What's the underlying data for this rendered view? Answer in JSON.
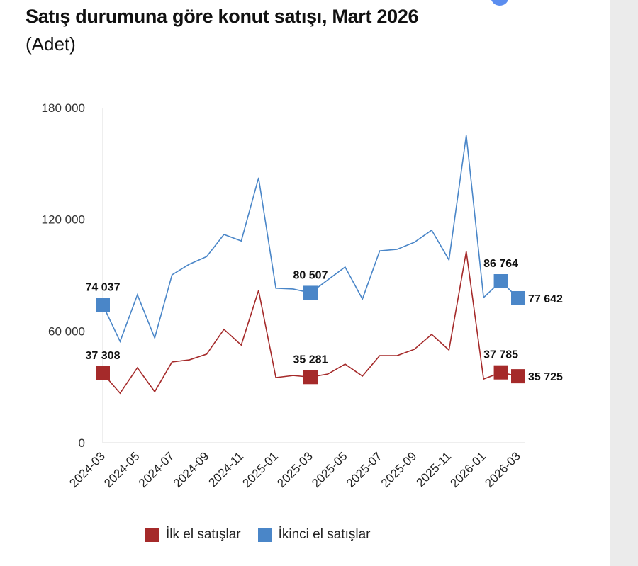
{
  "chart_data": {
    "type": "line",
    "title": "Satış durumuna göre konut satışı, Mart 2026",
    "subtitle": "(Adet)",
    "xlabel": "",
    "ylabel": "",
    "ylim": [
      0,
      180000
    ],
    "yticks": [
      0,
      60000,
      120000,
      180000
    ],
    "ytick_labels": [
      "0",
      "60 000",
      "120 000",
      "180 000"
    ],
    "x": [
      "2024-03",
      "2024-04",
      "2024-05",
      "2024-06",
      "2024-07",
      "2024-08",
      "2024-09",
      "2024-10",
      "2024-11",
      "2024-12",
      "2025-01",
      "2025-02",
      "2025-03",
      "2025-04",
      "2025-05",
      "2025-06",
      "2025-07",
      "2025-08",
      "2025-09",
      "2025-10",
      "2025-11",
      "2025-12",
      "2026-01",
      "2026-02",
      "2026-03"
    ],
    "xtick_labels": [
      "2024-03",
      "2024-05",
      "2024-07",
      "2024-09",
      "2024-11",
      "2025-01",
      "2025-03",
      "2025-05",
      "2025-07",
      "2025-09",
      "2025-11",
      "2026-01",
      "2026-03"
    ],
    "legend_position": "bottom",
    "grid": false,
    "series": [
      {
        "name": "İlk el satışlar",
        "color": "#a52a2a",
        "values": [
          37308,
          26600,
          40300,
          27400,
          43400,
          44500,
          47600,
          60900,
          52500,
          81800,
          35000,
          36100,
          35281,
          36900,
          42200,
          35800,
          46800,
          46800,
          50200,
          58200,
          49800,
          102700,
          34200,
          37785,
          35725
        ],
        "labels": {
          "0": "37 308",
          "12": "35 281",
          "23": "37 785",
          "24": "35 725"
        }
      },
      {
        "name": "İkinci el satışlar",
        "color": "#4a86c8",
        "values": [
          74037,
          54400,
          79500,
          56300,
          90200,
          95900,
          100000,
          111900,
          108400,
          142300,
          83000,
          82600,
          80507,
          87500,
          94400,
          77200,
          103100,
          103900,
          107700,
          114200,
          98200,
          165100,
          78000,
          86764,
          77642
        ],
        "labels": {
          "0": "74 037",
          "12": "80 507",
          "23": "86 764",
          "24": "77 642"
        }
      }
    ]
  }
}
